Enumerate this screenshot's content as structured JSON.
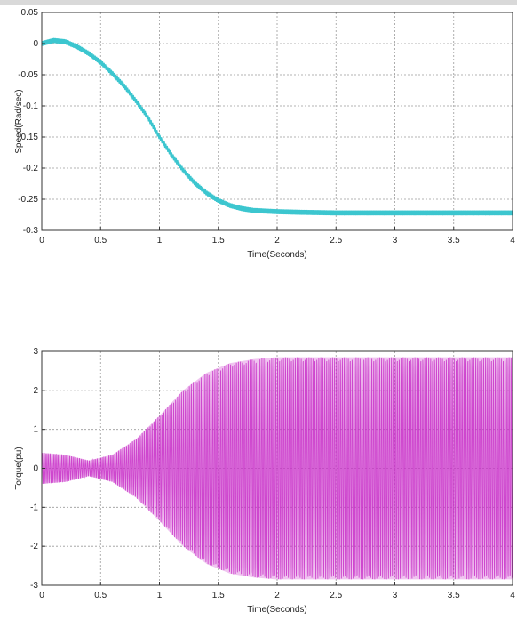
{
  "chart_data": [
    {
      "type": "line",
      "title": "",
      "xlabel": "Time(Seconds)",
      "ylabel": "Speed(Rad/sec)",
      "xlim": [
        0,
        4
      ],
      "ylim": [
        -0.3,
        0.05
      ],
      "xticks": [
        "0",
        "0.5",
        "1",
        "1.5",
        "2",
        "2.5",
        "3",
        "3.5",
        "4"
      ],
      "yticks": [
        "0.05",
        "0",
        "-0.05",
        "-0.1",
        "-0.15",
        "-0.2",
        "-0.25",
        "-0.3"
      ],
      "grid": true,
      "series": [
        {
          "color": "#3cc6cf",
          "x": [
            0,
            0.1,
            0.2,
            0.3,
            0.4,
            0.5,
            0.6,
            0.7,
            0.8,
            0.9,
            1.0,
            1.1,
            1.2,
            1.3,
            1.4,
            1.5,
            1.6,
            1.7,
            1.8,
            2.0,
            2.2,
            2.5,
            3.0,
            3.5,
            4.0
          ],
          "y": [
            0.0,
            0.005,
            0.003,
            -0.005,
            -0.016,
            -0.03,
            -0.048,
            -0.068,
            -0.092,
            -0.118,
            -0.15,
            -0.178,
            -0.203,
            -0.224,
            -0.24,
            -0.252,
            -0.26,
            -0.265,
            -0.268,
            -0.27,
            -0.271,
            -0.272,
            -0.272,
            -0.272,
            -0.272
          ],
          "ripple_amplitude": 0.004
        }
      ]
    },
    {
      "type": "line",
      "title": "",
      "xlabel": "Time(Seconds)",
      "ylabel": "Torque(pu)",
      "xlim": [
        0,
        4
      ],
      "ylim": [
        -3,
        3
      ],
      "xticks": [
        "0",
        "0.5",
        "1",
        "1.5",
        "2",
        "2.5",
        "3",
        "3.5",
        "4"
      ],
      "yticks": [
        "3",
        "2",
        "1",
        "0",
        "-1",
        "-2",
        "-3"
      ],
      "grid": true,
      "series": [
        {
          "color": "#c830c8",
          "envelope_t": [
            0,
            0.2,
            0.4,
            0.6,
            0.8,
            1.0,
            1.2,
            1.4,
            1.6,
            1.8,
            2.0,
            4.0
          ],
          "envelope_amp": [
            0.4,
            0.35,
            0.2,
            0.35,
            0.75,
            1.35,
            2.0,
            2.45,
            2.7,
            2.8,
            2.85,
            2.85
          ],
          "offset": 0.0
        }
      ]
    }
  ]
}
